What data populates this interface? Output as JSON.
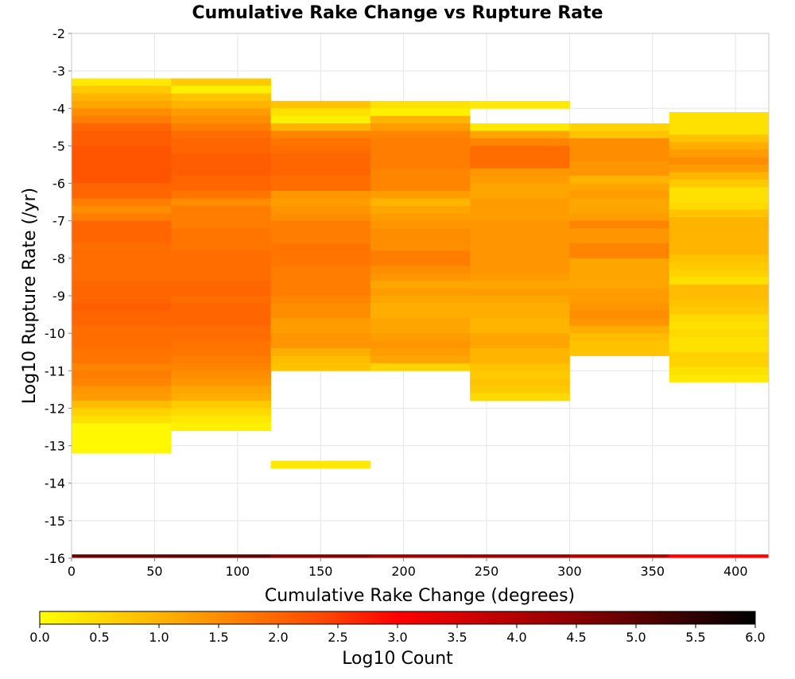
{
  "chart_data": {
    "type": "heatmap",
    "title": "Cumulative Rake Change vs Rupture Rate",
    "xlabel": "Cumulative Rake Change (degrees)",
    "ylabel": "Log10 Rupture Rate (/yr)",
    "xlim": [
      0,
      420
    ],
    "ylim": [
      -16,
      -2
    ],
    "x_ticks": [
      "0",
      "50",
      "100",
      "150",
      "200",
      "250",
      "300",
      "350",
      "400"
    ],
    "y_ticks": [
      "-2",
      "-3",
      "-4",
      "-5",
      "-6",
      "-7",
      "-8",
      "-9",
      "-10",
      "-11",
      "-12",
      "-13",
      "-14",
      "-15",
      "-16"
    ],
    "grid": true,
    "x_bin_width": 60,
    "y_bin_height": 0.2,
    "columns": [
      {
        "x_start": 0,
        "y_top": -3.2,
        "cells": [
          0.3,
          0.7,
          1.0,
          1.2,
          1.5,
          1.7,
          2.0,
          2.1,
          2.1,
          2.2,
          2.2,
          2.2,
          2.2,
          2.2,
          2.0,
          2.0,
          1.7,
          1.5,
          1.7,
          2.0,
          2.0,
          2.0,
          1.9,
          1.9,
          1.9,
          1.9,
          1.9,
          2.0,
          2.0,
          2.0,
          2.1,
          2.0,
          2.0,
          1.9,
          1.9,
          1.9,
          1.8,
          1.8,
          1.6,
          1.7,
          1.6,
          1.4,
          1.3,
          0.9,
          0.6,
          0.4,
          0.1,
          0.1,
          0.1,
          0.1
        ]
      },
      {
        "x_start": 60,
        "y_top": -3.2,
        "cells": [
          0.7,
          0.2,
          0.8,
          1.0,
          1.3,
          1.5,
          1.7,
          1.9,
          2.0,
          2.0,
          2.1,
          2.1,
          2.1,
          2.0,
          2.0,
          1.8,
          1.5,
          1.7,
          1.7,
          1.7,
          1.8,
          1.8,
          1.8,
          1.9,
          1.9,
          1.9,
          1.9,
          2.0,
          2.0,
          1.9,
          2.0,
          2.0,
          2.0,
          1.9,
          1.9,
          1.8,
          1.8,
          1.7,
          1.6,
          1.5,
          1.4,
          1.2,
          1.1,
          0.7,
          0.5,
          0.3,
          0.2
        ]
      },
      {
        "x_start": 120,
        "y_top": -3.8,
        "cells": [
          0.8,
          0.4,
          0.2,
          1.0,
          1.6,
          1.8,
          1.9,
          2.0,
          2.0,
          2.0,
          1.9,
          1.9,
          1.4,
          1.3,
          1.4,
          1.5,
          1.7,
          1.7,
          1.7,
          1.8,
          1.8,
          1.8,
          1.7,
          1.7,
          1.7,
          1.7,
          1.6,
          1.5,
          1.5,
          1.3,
          1.3,
          1.4,
          1.4,
          1.1,
          0.9,
          0.8
        ]
      },
      {
        "x_start": 180,
        "y_top": -3.8,
        "cells": [
          0.4,
          0.2,
          1.0,
          1.3,
          1.6,
          1.7,
          1.7,
          1.7,
          1.7,
          1.6,
          1.6,
          1.6,
          1.3,
          1.0,
          1.2,
          1.3,
          1.4,
          1.5,
          1.5,
          1.5,
          1.7,
          1.7,
          1.5,
          1.4,
          1.2,
          1.3,
          1.2,
          1.1,
          1.1,
          1.2,
          1.2,
          1.3,
          1.4,
          1.3,
          1.2,
          0.6
        ]
      },
      {
        "x_start": 240,
        "y_top": -3.8,
        "cells": [
          0.3,
          null,
          null,
          0.3,
          1.2,
          1.6,
          1.9,
          1.9,
          1.9,
          1.4,
          1.3,
          1.2,
          1.2,
          1.3,
          1.3,
          1.3,
          1.4,
          1.4,
          1.4,
          1.4,
          1.4,
          1.4,
          1.4,
          1.3,
          1.2,
          1.3,
          1.2,
          1.1,
          1.1,
          1.0,
          1.0,
          1.2,
          1.2,
          1.0,
          1.0,
          0.8,
          0.7,
          0.8,
          0.7,
          0.5
        ]
      },
      {
        "x_start": 300,
        "y_top": -4.4,
        "cells": [
          0.6,
          0.8,
          1.5,
          1.5,
          1.5,
          1.4,
          1.4,
          1.0,
          1.2,
          1.3,
          1.2,
          1.2,
          1.3,
          1.6,
          1.4,
          1.4,
          1.6,
          1.6,
          1.2,
          1.2,
          1.2,
          1.2,
          1.3,
          1.3,
          1.4,
          1.5,
          1.4,
          1.1,
          0.9,
          0.8,
          0.8
        ]
      },
      {
        "x_start": 360,
        "y_top": -4.1,
        "cells": [
          0.4,
          0.4,
          0.4,
          0.8,
          1.1,
          1.3,
          1.5,
          1.3,
          1.0,
          0.7,
          0.4,
          0.4,
          0.5,
          0.8,
          1.0,
          1.0,
          1.0,
          1.0,
          1.0,
          0.8,
          0.7,
          0.6,
          0.4,
          0.9,
          0.9,
          0.8,
          0.7,
          0.5,
          0.4,
          0.5,
          0.4,
          0.4,
          0.6,
          0.6,
          0.4,
          0.3
        ]
      }
    ],
    "isolated_cells": [
      {
        "x_start": 120,
        "y": -13.4,
        "value": 0.3
      }
    ],
    "bottom_row": {
      "y": -16.0,
      "values": [
        4.9,
        5.0,
        4.6,
        4.4,
        4.4,
        4.0,
        3.0
      ]
    },
    "colorbar": {
      "label": "Log10 Count",
      "range": [
        0,
        6
      ],
      "ticks": [
        "0.0",
        "0.5",
        "1.0",
        "1.5",
        "2.0",
        "2.5",
        "3.0",
        "3.5",
        "4.0",
        "4.5",
        "5.0",
        "5.5",
        "6.0"
      ],
      "colors": [
        "#ffff00",
        "#ffa500",
        "#ff4500",
        "#ff0000",
        "#8b0000",
        "#000000"
      ]
    }
  }
}
